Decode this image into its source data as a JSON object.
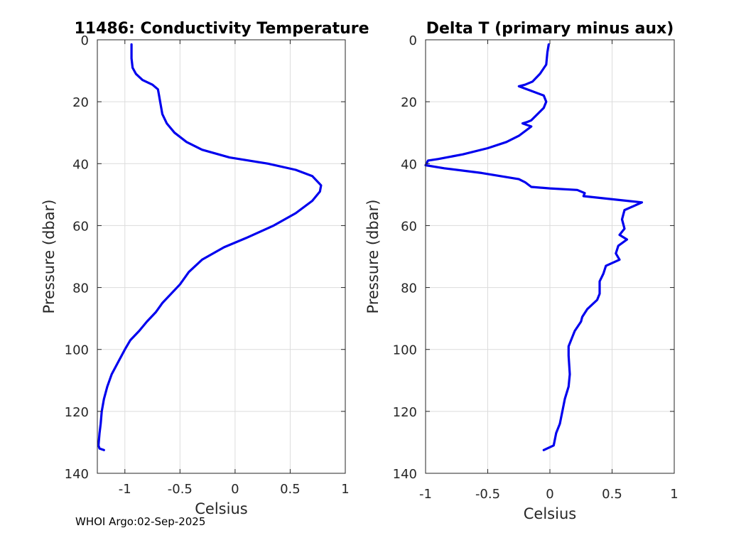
{
  "footer": "WHOI Argo:02-Sep-2025",
  "colors": {
    "line": "#0000ee",
    "grid": "#dcdcdc",
    "axis": "#262626",
    "background": "#ffffff"
  },
  "chart_data": [
    {
      "type": "line",
      "title": "11486: Conductivity Temperature",
      "xlabel": "Celsius",
      "ylabel": "Pressure (dbar)",
      "xlim": [
        -1.25,
        1
      ],
      "ylim": [
        0,
        140
      ],
      "y_reversed": true,
      "grid": true,
      "xticks": [
        -1,
        -0.5,
        0,
        0.5,
        1
      ],
      "xtick_labels": [
        "-1",
        "-0.5",
        "0",
        "0.5",
        "1"
      ],
      "yticks": [
        0,
        20,
        40,
        60,
        80,
        100,
        120,
        140
      ],
      "ytick_labels": [
        "0",
        "20",
        "40",
        "60",
        "80",
        "100",
        "120",
        "140"
      ],
      "series": [
        {
          "name": "Conductivity Temperature",
          "x": [
            -0.94,
            -0.94,
            -0.93,
            -0.9,
            -0.84,
            -0.75,
            -0.7,
            -0.69,
            -0.68,
            -0.66,
            -0.62,
            -0.55,
            -0.44,
            -0.3,
            -0.05,
            0.3,
            0.55,
            0.7,
            0.78,
            0.77,
            0.7,
            0.55,
            0.35,
            0.1,
            -0.1,
            -0.3,
            -0.42,
            -0.5,
            -0.58,
            -0.66,
            -0.72,
            -0.8,
            -0.87,
            -0.95,
            -1.0,
            -1.06,
            -1.12,
            -1.16,
            -1.19,
            -1.21,
            -1.22,
            -1.23,
            -1.24,
            -1.23,
            -1.19
          ],
          "y": [
            1.5,
            6,
            9,
            11,
            13,
            14.5,
            16,
            18,
            20,
            24,
            27,
            30,
            33,
            35.5,
            38,
            40,
            42,
            44,
            47,
            49,
            52,
            56,
            60,
            64,
            67,
            71,
            75,
            79,
            82,
            85,
            88,
            91,
            94,
            97,
            100,
            104,
            108,
            112,
            116,
            120,
            124,
            127,
            131,
            132,
            132.5
          ]
        }
      ]
    },
    {
      "type": "line",
      "title": "Delta T (primary minus aux)",
      "xlabel": "Celsius",
      "ylabel": "Pressure (dbar)",
      "xlim": [
        -1,
        1
      ],
      "ylim": [
        0,
        140
      ],
      "y_reversed": true,
      "grid": true,
      "xticks": [
        -1,
        -0.5,
        0,
        0.5,
        1
      ],
      "xtick_labels": [
        "-1",
        "-0.5",
        "0",
        "0.5",
        "1"
      ],
      "yticks": [
        0,
        20,
        40,
        60,
        80,
        100,
        120,
        140
      ],
      "ytick_labels": [
        "0",
        "20",
        "40",
        "60",
        "80",
        "100",
        "120",
        "140"
      ],
      "series": [
        {
          "name": "Delta T",
          "x": [
            -0.01,
            -0.02,
            -0.03,
            -0.08,
            -0.14,
            -0.2,
            -0.25,
            -0.15,
            -0.05,
            -0.03,
            -0.05,
            -0.1,
            -0.15,
            -0.18,
            -0.22,
            -0.15,
            -0.25,
            -0.35,
            -0.5,
            -0.7,
            -0.9,
            -0.98,
            -1.0,
            -0.85,
            -0.55,
            -0.25,
            -0.2,
            -0.15,
            0.0,
            0.22,
            0.28,
            0.27,
            0.74,
            0.6,
            0.58,
            0.6,
            0.56,
            0.62,
            0.55,
            0.53,
            0.56,
            0.45,
            0.43,
            0.4,
            0.4,
            0.38,
            0.3,
            0.26,
            0.25,
            0.2,
            0.18,
            0.15,
            0.15,
            0.16,
            0.15,
            0.12,
            0.1,
            0.08,
            0.05,
            0.03,
            -0.05
          ],
          "y": [
            1.5,
            4,
            8,
            11,
            13.5,
            14.5,
            15,
            16.5,
            18,
            20,
            22,
            24,
            26,
            26.5,
            27,
            28,
            31,
            33,
            35,
            37,
            38.5,
            39,
            40.5,
            41.5,
            43,
            45,
            46,
            47.5,
            48,
            48.5,
            49.5,
            50.5,
            52.5,
            55,
            58,
            61,
            63,
            64.5,
            66.5,
            69,
            71,
            73,
            75.5,
            78,
            82,
            84,
            87,
            89.5,
            91,
            94,
            96,
            99,
            102,
            108,
            112,
            116,
            120,
            124,
            127,
            131,
            132.5
          ]
        }
      ]
    }
  ]
}
